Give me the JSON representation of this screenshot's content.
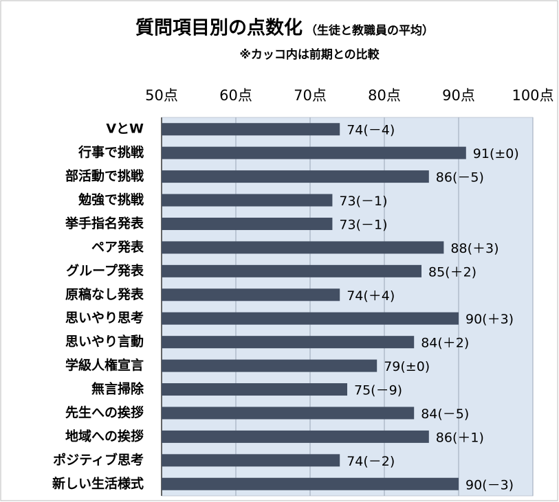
{
  "chart_data": {
    "type": "bar",
    "orientation": "horizontal",
    "title": "質問項目別の点数化",
    "subtitle": "（生徒と教職員の平均）",
    "note": "※カッコ内は前期との比較",
    "categories": [
      "VとW",
      "行事で挑戦",
      "部活動で挑戦",
      "勉強で挑戦",
      "挙手指名発表",
      "ペア発表",
      "グループ発表",
      "原稿なし発表",
      "思いやり思考",
      "思いやり言動",
      "学級人権宣言",
      "無言掃除",
      "先生への挨拶",
      "地域への挨拶",
      "ポジティブ思考",
      "新しい生活様式"
    ],
    "values": [
      74,
      91,
      86,
      73,
      73,
      88,
      85,
      74,
      90,
      84,
      79,
      75,
      84,
      86,
      74,
      90
    ],
    "value_labels": [
      "74(－4)",
      "91(±0)",
      "86(－5)",
      "73(－1)",
      "73(－1)",
      "88(＋3)",
      "85(＋2)",
      "74(＋4)",
      "90(＋3)",
      "84(＋2)",
      "79(±0)",
      "75(－9)",
      "84(－5)",
      "86(＋1)",
      "74(－2)",
      "90(－3)"
    ],
    "color": "#434f63",
    "xlim": [
      50,
      100
    ],
    "xticks": [
      {
        "value": 50,
        "label": "50点"
      },
      {
        "value": 60,
        "label": "60点"
      },
      {
        "value": 70,
        "label": "70点"
      },
      {
        "value": 80,
        "label": "80点"
      },
      {
        "value": 90,
        "label": "90点"
      },
      {
        "value": 100,
        "label": "100点"
      }
    ],
    "grid": true
  }
}
